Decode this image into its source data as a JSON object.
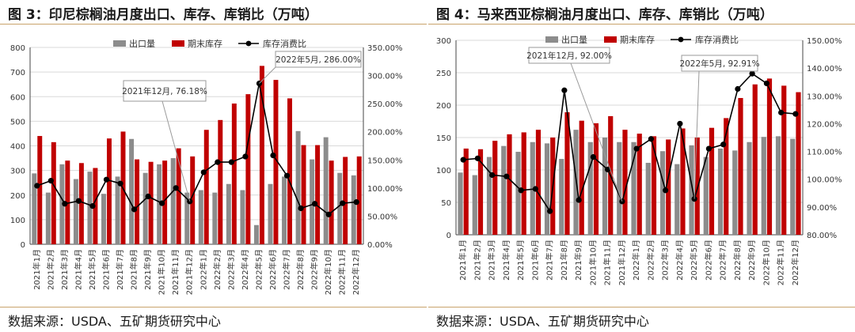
{
  "left": {
    "title": "图 3：印尼棕榈油月度出口、库存、库销比（万吨）",
    "source": "数据来源：USDA、五矿期货研究中心"
  },
  "right": {
    "title": "图 4：马来西亚棕榈油月度出口、库存、库销比（万吨）",
    "source": "数据来源：USDA、五矿期货研究中心"
  },
  "colors": {
    "export": "#8c8c8c",
    "stock": "#c00000",
    "ratio": "#000000"
  },
  "chart_data": [
    {
      "type": "bar",
      "title": "图 3：印尼棕榈油月度出口、库存、库销比（万吨）",
      "categories": [
        "2021年1月",
        "2021年2月",
        "2021年3月",
        "2021年4月",
        "2021年5月",
        "2021年6月",
        "2021年7月",
        "2021年8月",
        "2021年9月",
        "2021年10月",
        "2021年11月",
        "2021年12月",
        "2022年1月",
        "2022年2月",
        "2022年3月",
        "2022年4月",
        "2022年5月",
        "2022年6月",
        "2022年7月",
        "2022年8月",
        "2022年9月",
        "2022年10月",
        "2022年11月",
        "2022年12月"
      ],
      "series": [
        {
          "name": "出口量",
          "kind": "bar",
          "axis": "left",
          "values": [
            288,
            210,
            325,
            265,
            295,
            205,
            275,
            428,
            290,
            325,
            350,
            210,
            220,
            210,
            245,
            220,
            78,
            245,
            275,
            460,
            345,
            435,
            290,
            280
          ]
        },
        {
          "name": "期末库存",
          "kind": "bar",
          "axis": "left",
          "values": [
            440,
            415,
            340,
            330,
            310,
            430,
            458,
            345,
            335,
            340,
            390,
            357,
            465,
            505,
            572,
            610,
            725,
            668,
            593,
            403,
            403,
            340,
            355,
            357
          ]
        },
        {
          "name": "库存消费比",
          "kind": "line",
          "axis": "right",
          "values": [
            104,
            113,
            72,
            77,
            68,
            115,
            108,
            62,
            85,
            73,
            100,
            76.18,
            128,
            146,
            146,
            156,
            286,
            158,
            122,
            64,
            72,
            53,
            73,
            75
          ]
        }
      ],
      "ylim": [
        0,
        800
      ],
      "yticks": [
        0,
        100,
        200,
        300,
        400,
        500,
        600,
        700,
        800
      ],
      "y2lim": [
        0,
        350
      ],
      "y2ticks": [
        "0.00%",
        "50.00%",
        "100.00%",
        "150.00%",
        "200.00%",
        "250.00%",
        "300.00%",
        "350.00%"
      ],
      "y2tick_values": [
        0,
        50,
        100,
        150,
        200,
        250,
        300,
        350
      ],
      "legend": [
        "出口量",
        "期末库存",
        "库存消费比"
      ],
      "annotations": [
        {
          "text": "2021年12月, 76.18%",
          "index": 11
        },
        {
          "text": "2022年5月, 286.00%",
          "index": 16
        }
      ]
    },
    {
      "type": "bar",
      "title": "图 4：马来西亚棕榈油月度出口、库存、库销比（万吨）",
      "categories": [
        "2021年1月",
        "2021年2月",
        "2021年3月",
        "2021年4月",
        "2021年5月",
        "2021年6月",
        "2021年7月",
        "2021年8月",
        "2021年9月",
        "2021年10月",
        "2021年11月",
        "2021年12月",
        "2022年1月",
        "2022年2月",
        "2022年3月",
        "2022年4月",
        "2022年5月",
        "2022年6月",
        "2022年7月",
        "2022年8月",
        "2022年9月",
        "2022年10月",
        "2022年11月",
        "2022年12月"
      ],
      "series": [
        {
          "name": "出口量",
          "kind": "bar",
          "axis": "left",
          "values": [
            96,
            92,
            120,
            137,
            128,
            143,
            141,
            117,
            162,
            143,
            150,
            143,
            143,
            111,
            129,
            109,
            138,
            120,
            133,
            130,
            143,
            151,
            152,
            148
          ]
        },
        {
          "name": "期末库存",
          "kind": "bar",
          "axis": "left",
          "values": [
            133,
            132,
            145,
            155,
            158,
            162,
            150,
            189,
            176,
            172,
            183,
            162,
            156,
            152,
            147,
            164,
            150,
            165,
            180,
            211,
            232,
            241,
            230,
            220
          ]
        },
        {
          "name": "库存消费比",
          "kind": "line",
          "axis": "right",
          "values": [
            107,
            107.5,
            101.5,
            101,
            96,
            96.5,
            88.5,
            132,
            92.5,
            108,
            103.5,
            92,
            111,
            114.5,
            96,
            120,
            92.91,
            111,
            112.5,
            132.5,
            138,
            134.5,
            124,
            123.5
          ]
        }
      ],
      "ylim": [
        0,
        300
      ],
      "yticks": [
        0,
        50,
        100,
        150,
        200,
        250,
        300
      ],
      "y2lim": [
        80,
        150
      ],
      "y2ticks": [
        "80.00%",
        "90.00%",
        "100.00%",
        "110.00%",
        "120.00%",
        "130.00%",
        "140.00%",
        "150.00%"
      ],
      "y2tick_values": [
        80,
        90,
        100,
        110,
        120,
        130,
        140,
        150
      ],
      "legend": [
        "出口量",
        "期末库存",
        "库存消费比"
      ],
      "annotations": [
        {
          "text": "2021年12月, 92.00%",
          "index": 11
        },
        {
          "text": "2022年5月, 92.91%",
          "index": 16
        }
      ]
    }
  ]
}
